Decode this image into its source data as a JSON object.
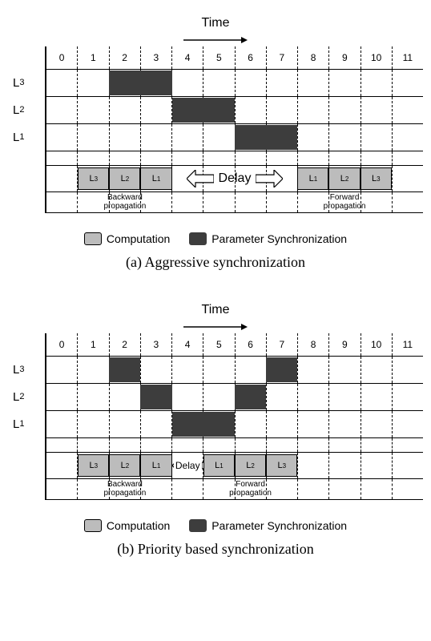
{
  "global": {
    "title_time": "Time",
    "columns": [
      "0",
      "1",
      "2",
      "3",
      "4",
      "5",
      "6",
      "7",
      "8",
      "9",
      "10",
      "11"
    ],
    "num_columns": 12,
    "cell_width_pct": 8.3333,
    "rows": [
      "L3",
      "L2",
      "L1"
    ],
    "legend": {
      "computation": "Computation",
      "param_sync": "Parameter Synchronization"
    },
    "colors": {
      "dark_block": "#3d3d3d",
      "light_block": "#bcbcbc",
      "grid_line": "#000000",
      "background": "#ffffff"
    },
    "annotations": {
      "backward": "Backward\npropagation",
      "forward": "Forward\npropagation"
    },
    "delay_label": "Delay"
  },
  "fig_a": {
    "caption": "(a) Aggressive synchronization",
    "dark_blocks": [
      {
        "row": "L3",
        "start": 2,
        "span": 2
      },
      {
        "row": "L2",
        "start": 4,
        "span": 2
      },
      {
        "row": "L1",
        "start": 6,
        "span": 2
      }
    ],
    "comp_blocks": {
      "backward": [
        {
          "label": "L3",
          "col": 1
        },
        {
          "label": "L2",
          "col": 2
        },
        {
          "label": "L1",
          "col": 3
        }
      ],
      "forward": [
        {
          "label": "L1",
          "col": 8
        },
        {
          "label": "L2",
          "col": 9
        },
        {
          "label": "L3",
          "col": 10
        }
      ]
    },
    "delay": {
      "start": 4,
      "end": 8
    },
    "annot_backward_center_col": 2,
    "annot_forward_center_col": 9
  },
  "fig_b": {
    "caption": "(b) Priority based synchronization",
    "dark_blocks": [
      {
        "row": "L3",
        "start": 2,
        "span": 1
      },
      {
        "row": "L3",
        "start": 7,
        "span": 1
      },
      {
        "row": "L2",
        "start": 3,
        "span": 1
      },
      {
        "row": "L2",
        "start": 6,
        "span": 1
      },
      {
        "row": "L1",
        "start": 4,
        "span": 2
      }
    ],
    "comp_blocks": {
      "backward": [
        {
          "label": "L3",
          "col": 1
        },
        {
          "label": "L2",
          "col": 2
        },
        {
          "label": "L1",
          "col": 3
        }
      ],
      "forward": [
        {
          "label": "L1",
          "col": 5
        },
        {
          "label": "L2",
          "col": 6
        },
        {
          "label": "L3",
          "col": 7
        }
      ]
    },
    "delay": {
      "start": 4,
      "end": 5
    },
    "annot_backward_center_col": 2,
    "annot_forward_center_col": 6
  }
}
